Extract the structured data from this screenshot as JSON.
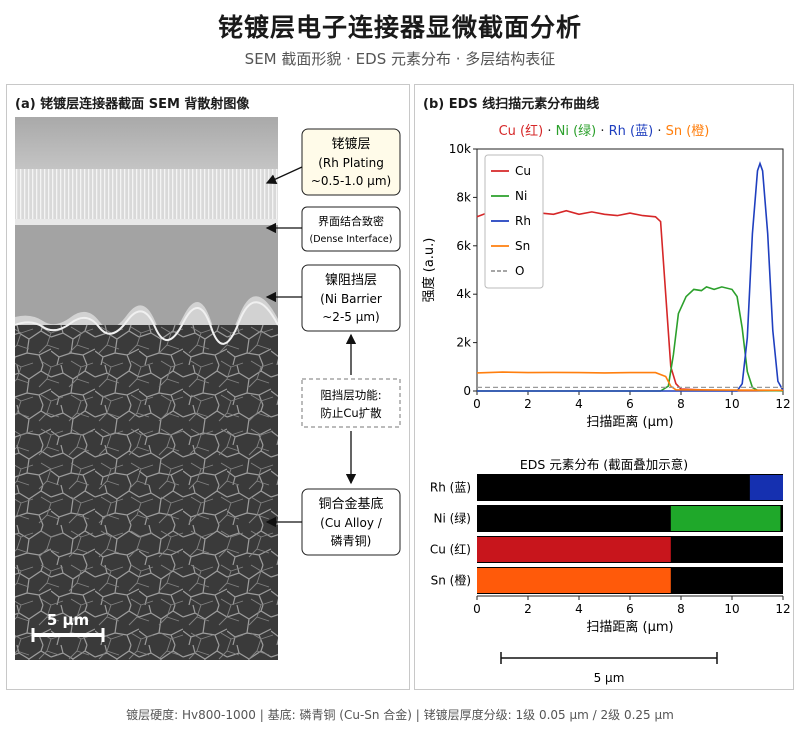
{
  "header": {
    "title": "铑镀层电子连接器显微截面分析",
    "subtitle": "SEM 截面形貌 · EDS 元素分布 · 多层结构表征"
  },
  "panel_a": {
    "title": "(a) 铑镀层连接器截面 SEM 背散射图像",
    "callouts": {
      "rh": [
        "铑镀层",
        "(Rh Plating",
        "~0.5-1.0 μm)"
      ],
      "interface": [
        "界面结合致密",
        "(Dense Interface)"
      ],
      "ni": [
        "镍阻挡层",
        "(Ni Barrier",
        "~2-5 μm)"
      ],
      "function": [
        "阻挡层功能:",
        "防止Cu扩散"
      ],
      "cu": [
        "铜合金基底",
        "(Cu Alloy /",
        "磷青铜)"
      ]
    },
    "scale_bar_label": "5 μm"
  },
  "panel_b": {
    "title": "(b) EDS 线扫描元素分布曲线",
    "legend_caption": [
      {
        "text": "Cu (红)",
        "color": "#d62728"
      },
      {
        "text": " · ",
        "color": "#222222"
      },
      {
        "text": "Ni (绿)",
        "color": "#2ca02c"
      },
      {
        "text": " · ",
        "color": "#222222"
      },
      {
        "text": "Rh (蓝)",
        "color": "#1f3fbf"
      },
      {
        "text": " · ",
        "color": "#222222"
      },
      {
        "text": "Sn (橙)",
        "color": "#ff7f0e"
      }
    ],
    "map_title": "EDS 元素分布 (截面叠加示意)",
    "map_xlabel": "扫描距离 (μm)",
    "map_scale_label": "5 μm"
  },
  "chart_data": [
    {
      "type": "line",
      "xlabel": "扫描距离 (μm)",
      "ylabel": "强度 (a.u.)",
      "xlim": [
        0,
        12
      ],
      "ylim": [
        0,
        10000
      ],
      "xticks": [
        0,
        2,
        4,
        6,
        8,
        10,
        12
      ],
      "yticks": [
        {
          "v": 0,
          "label": "0"
        },
        {
          "v": 2000,
          "label": "2k"
        },
        {
          "v": 4000,
          "label": "4k"
        },
        {
          "v": 6000,
          "label": "6k"
        },
        {
          "v": 8000,
          "label": "8k"
        },
        {
          "v": 10000,
          "label": "10k"
        }
      ],
      "legend": "top-left",
      "grid": false,
      "series": [
        {
          "name": "Cu",
          "color": "#d62728",
          "dash": false,
          "points": [
            [
              0,
              7200
            ],
            [
              0.5,
              7400
            ],
            [
              1,
              7300
            ],
            [
              1.5,
              7450
            ],
            [
              2,
              7200
            ],
            [
              2.5,
              7350
            ],
            [
              3,
              7300
            ],
            [
              3.5,
              7450
            ],
            [
              4,
              7300
            ],
            [
              4.5,
              7400
            ],
            [
              5,
              7300
            ],
            [
              5.5,
              7250
            ],
            [
              6,
              7350
            ],
            [
              6.5,
              7250
            ],
            [
              7,
              7200
            ],
            [
              7.2,
              7000
            ],
            [
              7.4,
              4000
            ],
            [
              7.6,
              1000
            ],
            [
              7.8,
              300
            ],
            [
              8,
              80
            ],
            [
              9,
              40
            ],
            [
              10,
              20
            ],
            [
              12,
              20
            ]
          ]
        },
        {
          "name": "Ni",
          "color": "#2ca02c",
          "dash": false,
          "points": [
            [
              0,
              0
            ],
            [
              7.2,
              0
            ],
            [
              7.5,
              200
            ],
            [
              7.7,
              1500
            ],
            [
              7.9,
              3200
            ],
            [
              8.2,
              3900
            ],
            [
              8.5,
              4200
            ],
            [
              8.8,
              4150
            ],
            [
              9,
              4300
            ],
            [
              9.3,
              4200
            ],
            [
              9.6,
              4300
            ],
            [
              10,
              4200
            ],
            [
              10.2,
              3900
            ],
            [
              10.4,
              2600
            ],
            [
              10.6,
              800
            ],
            [
              10.8,
              150
            ],
            [
              11,
              30
            ],
            [
              12,
              10
            ]
          ]
        },
        {
          "name": "Rh",
          "color": "#1f3fbf",
          "dash": false,
          "points": [
            [
              0,
              0
            ],
            [
              10.2,
              0
            ],
            [
              10.4,
              300
            ],
            [
              10.6,
              2200
            ],
            [
              10.8,
              6500
            ],
            [
              11,
              9100
            ],
            [
              11.1,
              9400
            ],
            [
              11.2,
              9100
            ],
            [
              11.4,
              6500
            ],
            [
              11.6,
              2500
            ],
            [
              11.8,
              400
            ],
            [
              12,
              30
            ]
          ]
        },
        {
          "name": "Sn",
          "color": "#ff7f0e",
          "dash": false,
          "points": [
            [
              0,
              750
            ],
            [
              1,
              780
            ],
            [
              2,
              760
            ],
            [
              3,
              770
            ],
            [
              4,
              760
            ],
            [
              5,
              750
            ],
            [
              6,
              760
            ],
            [
              7,
              760
            ],
            [
              7.4,
              600
            ],
            [
              7.6,
              200
            ],
            [
              7.8,
              50
            ],
            [
              12,
              30
            ]
          ]
        },
        {
          "name": "O",
          "color": "#9a9a9a",
          "dash": true,
          "points": [
            [
              0,
              150
            ],
            [
              12,
              150
            ]
          ]
        }
      ]
    },
    {
      "type": "heatmap",
      "xlabel": "扫描距离 (μm)",
      "xlim": [
        0,
        12
      ],
      "xticks": [
        0,
        2,
        4,
        6,
        8,
        10,
        12
      ],
      "rows": [
        {
          "label": "Rh (蓝)",
          "color": "#1530b0",
          "start": 10.7,
          "end": 12.2
        },
        {
          "label": "Ni (绿)",
          "color": "#1fa82a",
          "start": 7.6,
          "end": 11.9
        },
        {
          "label": "Cu (红)",
          "color": "#c8151c",
          "start": 0,
          "end": 7.6
        },
        {
          "label": "Sn (橙)",
          "color": "#ff5a0a",
          "start": 0,
          "end": 7.6
        }
      ]
    }
  ],
  "footer": "镀层硬度: Hv800-1000 | 基底: 磷青铜 (Cu-Sn 合金) | 铑镀层厚度分级: 1级 0.05 μm / 2级 0.25 μm"
}
